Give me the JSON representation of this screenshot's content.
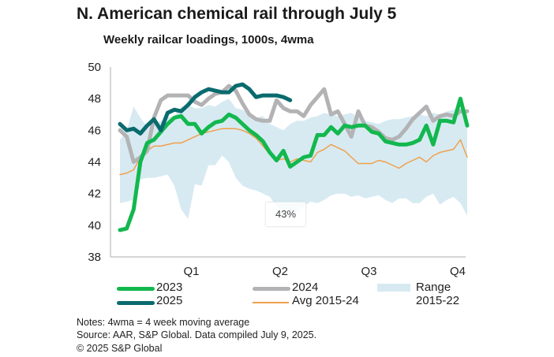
{
  "chart_data": {
    "type": "line",
    "title": "N. American chemical rail through July 5",
    "subtitle": "Weekly railcar loadings, 1000s, 4wma",
    "xlabel": "",
    "ylabel": "",
    "ylim": [
      38,
      50
    ],
    "yticks": [
      "50",
      "48",
      "46",
      "44",
      "42",
      "40",
      "38"
    ],
    "xticks": [
      "Q1",
      "Q2",
      "Q3",
      "Q4"
    ],
    "grid": false,
    "legend_position": "bottom",
    "weeks": 52,
    "range": {
      "name": "Range 2015-22",
      "low": [
        41.4,
        41.5,
        41.6,
        42.9,
        43.0,
        43.0,
        43.1,
        43.2,
        42.5,
        41.0,
        40.4,
        42.6,
        42.5,
        43.8,
        43.8,
        44.4,
        44.0,
        43.0,
        42.5,
        42.3,
        42.2,
        42.0,
        41.8,
        41.2,
        40.8,
        40.6,
        40.8,
        41.2,
        41.5,
        41.4,
        41.6,
        41.9,
        42.0,
        42.0,
        41.8,
        41.9,
        41.7,
        41.8,
        41.9,
        41.6,
        41.4,
        41.7,
        41.7,
        41.4,
        41.4,
        41.8,
        42.0,
        41.3,
        41.6,
        41.8,
        41.4,
        40.6
      ],
      "high": [
        45.4,
        46.0,
        47.5,
        46.8,
        46.2,
        46.4,
        46.6,
        46.8,
        46.9,
        47.5,
        47.6,
        47.4,
        47.4,
        47.6,
        47.5,
        47.8,
        48.0,
        47.4,
        47.3,
        47.0,
        46.8,
        46.9,
        46.4,
        46.2,
        46.0,
        46.4,
        46.6,
        46.6,
        46.8,
        46.9,
        47.1,
        47.0,
        46.9,
        47.0,
        47.1,
        46.8,
        46.6,
        46.5,
        46.4,
        46.6,
        46.7,
        46.7,
        46.8,
        46.9,
        47.0,
        46.9,
        47.1,
        47.0,
        47.2,
        47.3,
        47.4,
        47.0
      ]
    },
    "series": [
      {
        "name": "2023",
        "color": "#12b84e",
        "values": [
          39.7,
          39.8,
          41.0,
          44.0,
          45.2,
          45.4,
          45.9,
          46.4,
          46.8,
          46.9,
          46.4,
          46.4,
          45.8,
          46.2,
          46.5,
          46.6,
          47.0,
          46.8,
          46.4,
          46.0,
          45.7,
          45.3,
          44.6,
          44.1,
          44.7,
          43.7,
          44.0,
          44.3,
          44.4,
          45.7,
          45.7,
          46.2,
          45.8,
          46.3,
          46.2,
          46.3,
          46.3,
          45.9,
          45.8,
          45.3,
          45.2,
          45.1,
          45.1,
          45.2,
          45.4,
          46.3,
          45.1,
          46.6,
          46.6,
          46.5,
          48.0,
          46.3
        ]
      },
      {
        "name": "2024",
        "color": "#b3b3b5",
        "values": [
          46.0,
          45.6,
          44.0,
          44.3,
          44.7,
          46.8,
          47.9,
          48.2,
          48.2,
          48.2,
          48.2,
          47.8,
          47.6,
          48.0,
          48.3,
          48.4,
          48.8,
          48.5,
          47.7,
          47.0,
          46.7,
          46.6,
          46.6,
          47.9,
          47.4,
          47.2,
          47.2,
          46.9,
          47.6,
          48.1,
          48.6,
          47.0,
          47.2,
          46.4,
          45.6,
          47.2,
          46.3,
          46.2,
          45.9,
          45.5,
          45.4,
          45.6,
          46.1,
          46.7,
          47.1,
          47.5,
          46.6,
          46.9,
          47.0,
          46.9,
          47.2,
          47.2
        ]
      },
      {
        "name": "2025",
        "color": "#0a6b6e",
        "values": [
          46.4,
          46.0,
          46.1,
          45.8,
          46.3,
          46.7,
          46.0,
          47.1,
          47.3,
          47.2,
          47.6,
          48.1,
          48.4,
          48.6,
          48.5,
          48.4,
          48.4,
          48.8,
          48.9,
          48.6,
          48.1,
          48.2,
          48.2,
          48.2,
          48.1,
          47.9
        ]
      },
      {
        "name": "Avg 2015-24",
        "color": "#f0a04b",
        "values": [
          43.2,
          43.3,
          43.5,
          44.3,
          44.7,
          45.0,
          45.0,
          45.1,
          45.2,
          45.2,
          45.4,
          45.6,
          45.8,
          45.9,
          46.0,
          46.1,
          46.1,
          46.1,
          46.0,
          45.8,
          45.5,
          45.0,
          44.5,
          44.1,
          44.2,
          44.0,
          44.2,
          44.1,
          44.0,
          44.6,
          44.8,
          45.1,
          44.9,
          44.7,
          44.3,
          43.9,
          43.9,
          43.9,
          44.1,
          44.0,
          43.8,
          43.6,
          43.9,
          44.1,
          44.3,
          44.0,
          44.4,
          44.6,
          44.7,
          44.8,
          45.4,
          44.3
        ]
      }
    ]
  },
  "legend": [
    {
      "label": "2023",
      "color": "#12b84e"
    },
    {
      "label": "2024",
      "color": "#b3b3b5"
    },
    {
      "label_line1": "Range",
      "label_line2": "2015-22",
      "color": "#d7eaf2"
    },
    {
      "label": "2025",
      "color": "#0a6b6e"
    },
    {
      "label": "Avg 2015-24",
      "color": "#f0a04b"
    }
  ],
  "notes": {
    "line1": "Notes: 4wma = 4 week moving average",
    "line2": "Source: AAR, S&P Global. Data compiled July 9, 2025.",
    "line3": "© 2025 S&P Global"
  },
  "overlay_badge": "43%"
}
